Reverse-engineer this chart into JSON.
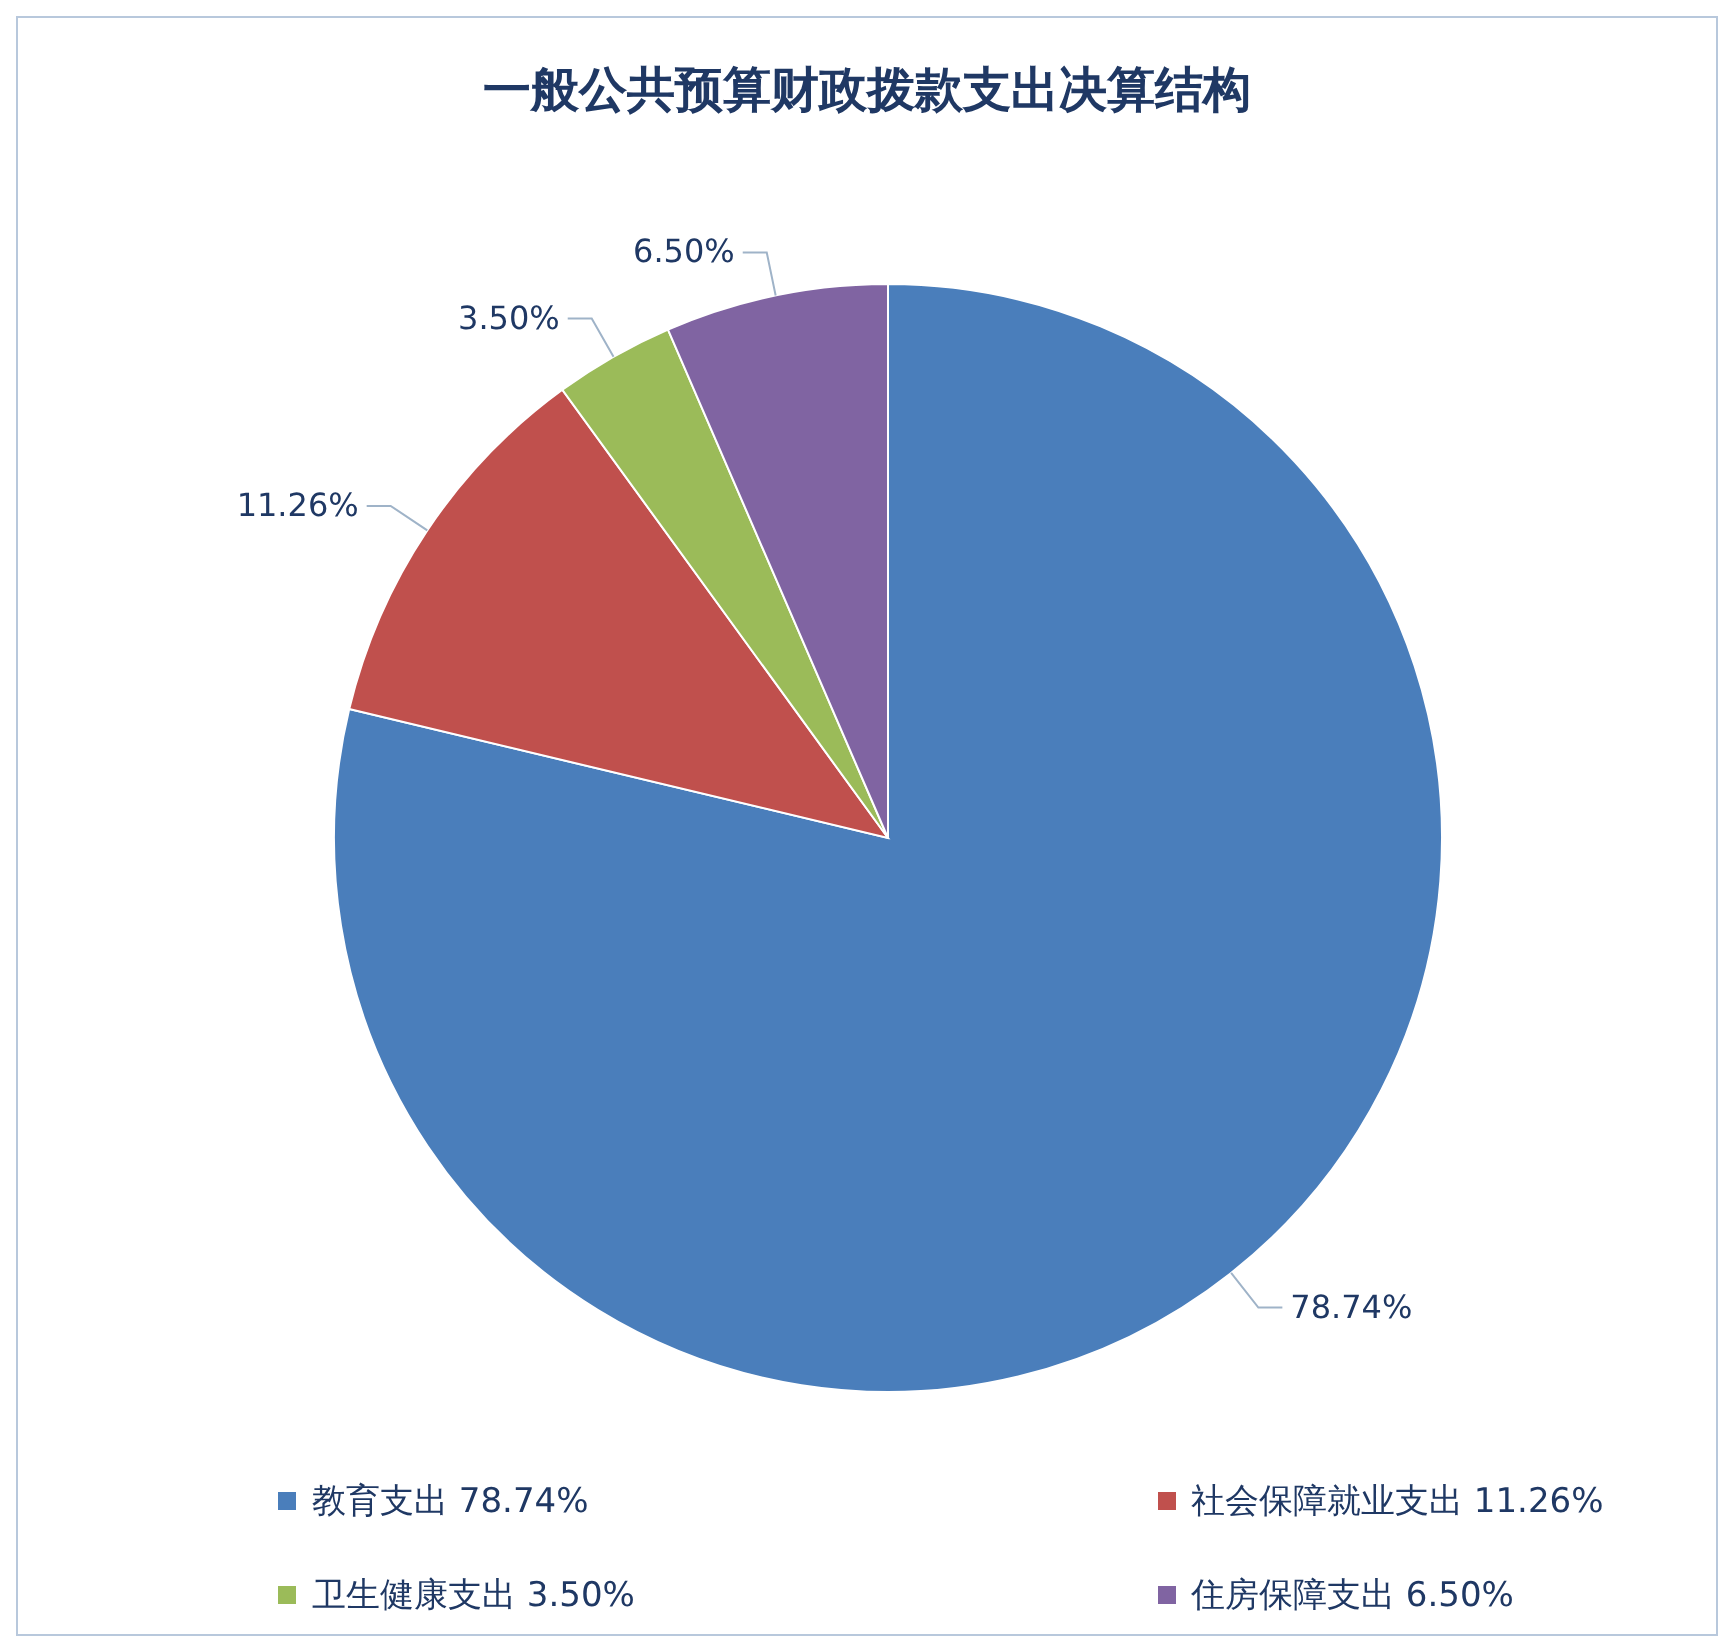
{
  "chart_data": {
    "type": "pie",
    "title": "一般公共预算财政拨款支出决算结构",
    "categories": [
      "教育支出",
      "社会保障就业支出",
      "卫生健康支出",
      "住房保障支出"
    ],
    "values": [
      78.74,
      11.26,
      3.5,
      6.5
    ],
    "value_labels": [
      "78.74%",
      "11.26%",
      "3.50%",
      "6.50%"
    ],
    "colors": [
      "#4a7ebb",
      "#c0504d",
      "#9bbb59",
      "#8064a2"
    ],
    "legend": "bottom"
  }
}
